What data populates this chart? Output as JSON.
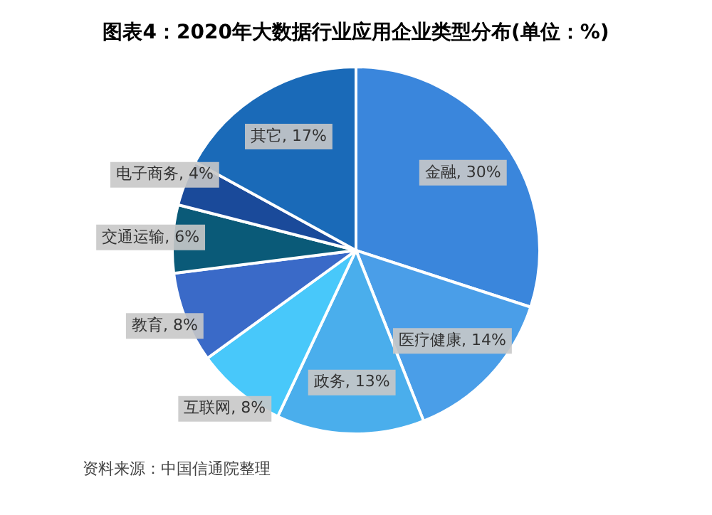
{
  "chart_data": {
    "type": "pie",
    "title": "图表4：2020年大数据行业应用企业类型分布(单位：%)",
    "categories": [
      "金融",
      "医疗健康",
      "政务",
      "互联网",
      "教育",
      "交通运输",
      "电子商务",
      "其它"
    ],
    "values": [
      30,
      14,
      13,
      8,
      8,
      6,
      4,
      17
    ],
    "value_labels": [
      "30%",
      "14%",
      "13%",
      "8%",
      "8%",
      "6%",
      "4%",
      "17%"
    ],
    "colors": [
      "#3a86dc",
      "#4a9ee8",
      "#4aaeec",
      "#48c8fa",
      "#3a6ac8",
      "#0a5a78",
      "#1a4a9a",
      "#1a6ab8"
    ],
    "legend": false,
    "annotations": [
      "资料来源：中国信通院整理"
    ]
  }
}
